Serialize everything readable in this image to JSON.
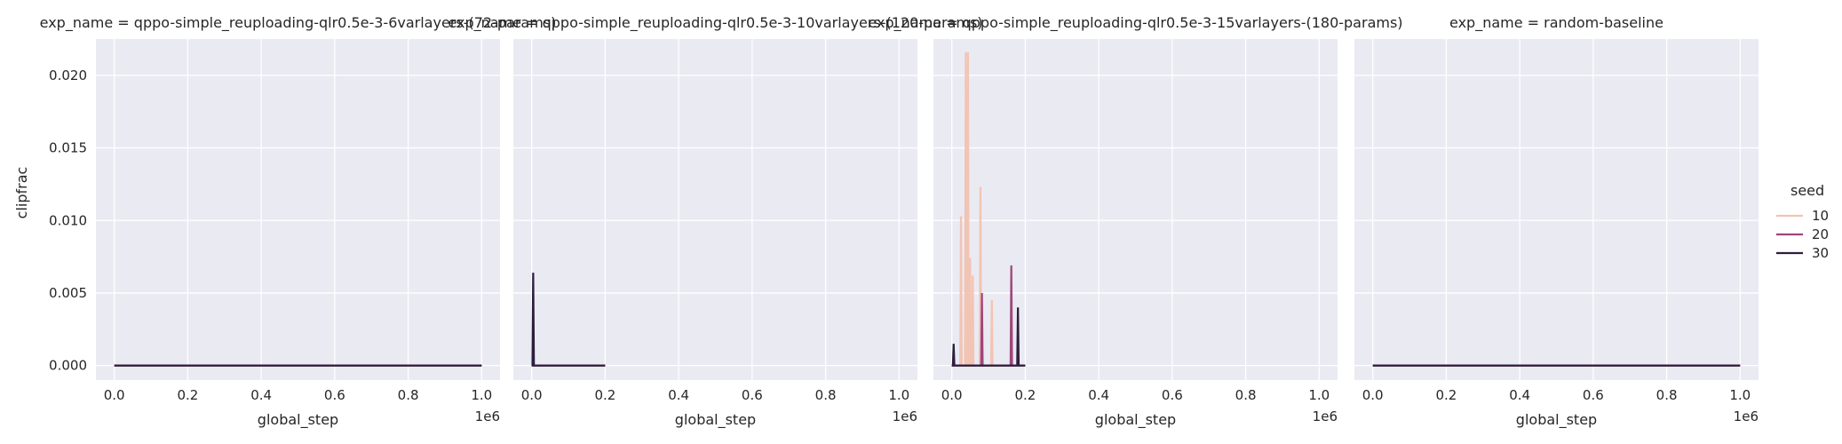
{
  "chart_data": {
    "type": "line",
    "ylabel": "clipfrac",
    "x_offset_label": "1e6",
    "ylim": [
      -0.001,
      0.0225
    ],
    "yticks": [
      0.0,
      0.005,
      0.01,
      0.015,
      0.02
    ],
    "ytick_labels": [
      "0.000",
      "0.005",
      "0.010",
      "0.015",
      "0.020"
    ],
    "xlim": [
      -0.05,
      1.05
    ],
    "xticks": [
      0.0,
      0.2,
      0.4,
      0.6,
      0.8,
      1.0
    ],
    "xtick_labels": [
      "0.0",
      "0.2",
      "0.4",
      "0.6",
      "0.8",
      "1.0"
    ],
    "grid": true,
    "legend": {
      "title": "seed",
      "placement": "right",
      "entries": [
        {
          "label": "10",
          "color": "#f2c4b4"
        },
        {
          "label": "20",
          "color": "#a0457b"
        },
        {
          "label": "30",
          "color": "#2c1e3d"
        }
      ]
    },
    "panels": [
      {
        "title": "exp_name = qppo-simple_reuploading-qlr0.5e-3-6varlayers-(72-params)",
        "xlabel": "global_step",
        "series": [
          {
            "seed": "10",
            "x": [
              0.0,
              1.0
            ],
            "y": [
              0.0,
              0.0
            ]
          },
          {
            "seed": "20",
            "x": [
              0.0,
              1.0
            ],
            "y": [
              0.0,
              0.0
            ]
          },
          {
            "seed": "30",
            "x": [
              0.0,
              1.0
            ],
            "y": [
              0.0,
              0.0
            ]
          }
        ]
      },
      {
        "title": "exp_name = qppo-simple_reuploading-qlr0.5e-3-10varlayers-(120-params)",
        "xlabel": "global_step",
        "series": [
          {
            "seed": "10",
            "x": [
              0.0,
              0.2
            ],
            "y": [
              0.0,
              0.0
            ]
          },
          {
            "seed": "20",
            "x": [
              0.0,
              0.2
            ],
            "y": [
              0.0,
              0.0
            ]
          },
          {
            "seed": "30",
            "x": [
              0.0,
              0.002,
              0.004,
              0.006,
              0.008,
              0.2
            ],
            "y": [
              0.0,
              0.0,
              0.0064,
              0.0,
              0.0,
              0.0
            ]
          }
        ]
      },
      {
        "title": "exp_name = qppo-simple_reuploading-qlr0.5e-3-15varlayers-(180-params)",
        "xlabel": "global_step",
        "series": [
          {
            "seed": "10",
            "x": [
              0.0,
              0.023,
              0.025,
              0.027,
              0.036,
              0.038,
              0.04,
              0.042,
              0.044,
              0.046,
              0.048,
              0.05,
              0.052,
              0.055,
              0.057,
              0.059,
              0.076,
              0.078,
              0.08,
              0.107,
              0.109,
              0.111,
              0.2
            ],
            "y": [
              0.0,
              0.0,
              0.0103,
              0.0,
              0.0,
              0.0216,
              0.0,
              0.0,
              0.0216,
              0.0,
              0.0,
              0.0074,
              0.0,
              0.0,
              0.0062,
              0.0,
              0.0,
              0.0123,
              0.0,
              0.0,
              0.0045,
              0.0,
              0.0
            ]
          },
          {
            "seed": "20",
            "x": [
              0.0,
              0.08,
              0.082,
              0.084,
              0.16,
              0.162,
              0.164,
              0.2
            ],
            "y": [
              0.0,
              0.0,
              0.005,
              0.0,
              0.0,
              0.0069,
              0.0,
              0.0
            ]
          },
          {
            "seed": "30",
            "x": [
              0.0,
              0.003,
              0.005,
              0.007,
              0.178,
              0.18,
              0.182,
              0.2
            ],
            "y": [
              0.0,
              0.0,
              0.0015,
              0.0,
              0.0,
              0.004,
              0.0,
              0.0
            ]
          }
        ]
      },
      {
        "title": "exp_name = random-baseline",
        "xlabel": "global_step",
        "series": [
          {
            "seed": "10",
            "x": [
              0.0,
              1.0
            ],
            "y": [
              0.0,
              0.0
            ]
          },
          {
            "seed": "20",
            "x": [
              0.0,
              1.0
            ],
            "y": [
              0.0,
              0.0
            ]
          },
          {
            "seed": "30",
            "x": [
              0.0,
              1.0
            ],
            "y": [
              0.0,
              0.0
            ]
          }
        ]
      }
    ]
  }
}
